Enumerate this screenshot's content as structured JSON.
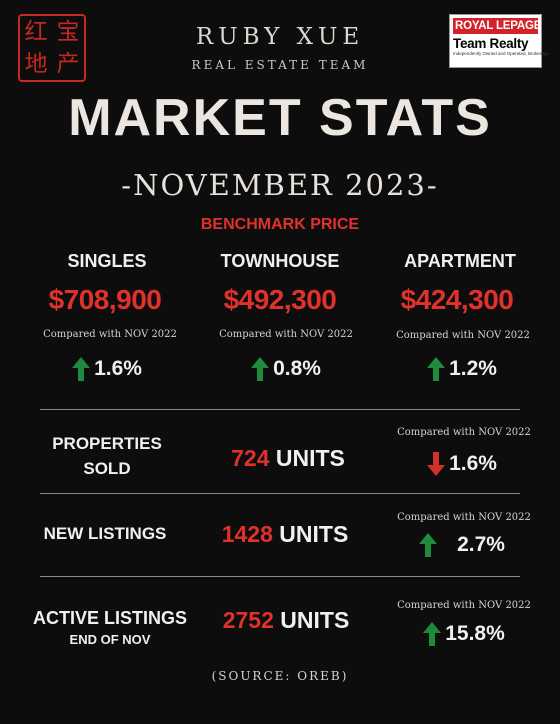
{
  "seal": {
    "chars": [
      "宝",
      "产",
      "红",
      "地"
    ]
  },
  "team": {
    "name": "RUBY XUE",
    "subtitle": "REAL ESTATE TEAM"
  },
  "brokerage": {
    "line1": "ROYAL LEPAGE",
    "line2": "Team Realty",
    "line3": "Independently Owned and Operated, Brokerage"
  },
  "title": "MARKET STATS",
  "subtitle": "-NOVEMBER 2023-",
  "benchmark_label": "BENCHMARK PRICE",
  "compare_text": "Compared with NOV 2022",
  "benchmarks": [
    {
      "name": "SINGLES",
      "price": "$708,900",
      "change": "1.6%",
      "direction": "up"
    },
    {
      "name": "TOWNHOUSE",
      "price": "$492,300",
      "change": "0.8%",
      "direction": "up"
    },
    {
      "name": "APARTMENT",
      "price": "$424,300",
      "change": "1.2%",
      "direction": "up"
    }
  ],
  "stats": [
    {
      "label_line1": "PROPERTIES",
      "label_line2": "SOLD",
      "value": "724",
      "unit": "UNITS",
      "change": "1.6%",
      "direction": "down"
    },
    {
      "label_line1": "NEW LISTINGS",
      "label_line2": "",
      "value": "1428",
      "unit": "UNITS",
      "change": "2.7%",
      "direction": "up"
    },
    {
      "label_line1": "ACTIVE LISTINGS",
      "label_line2": "END OF NOV",
      "value": "2752",
      "unit": "UNITS",
      "change": "15.8%",
      "direction": "up"
    }
  ],
  "source": "(SOURCE: OREB)",
  "colors": {
    "accent_red": "#e0312b",
    "up_green": "#1e8a3e",
    "down_red": "#d2302a",
    "background": "#0d0d0d"
  }
}
